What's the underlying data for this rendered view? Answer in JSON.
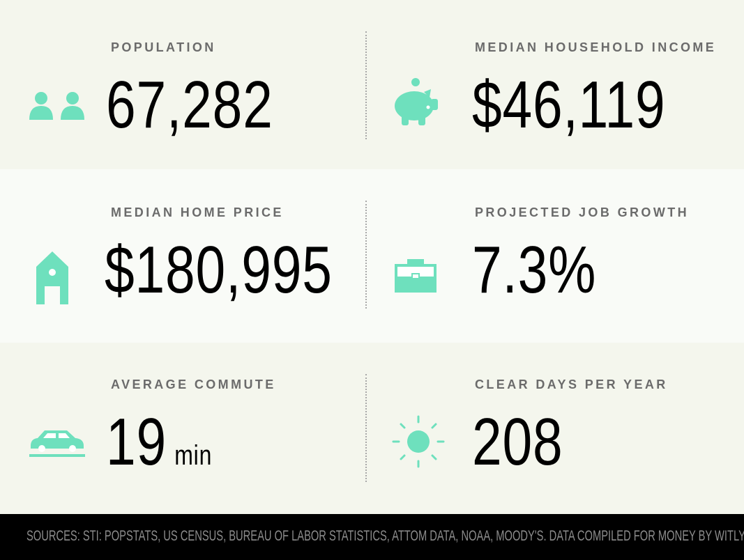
{
  "accent": "#6ee0bd",
  "stats": [
    {
      "label": "POPULATION",
      "value": "67,282",
      "icon": "people-icon"
    },
    {
      "label": "MEDIAN HOUSEHOLD INCOME",
      "value": "$46,119",
      "icon": "piggy-bank-icon"
    },
    {
      "label": "MEDIAN HOME PRICE",
      "value": "$180,995",
      "icon": "house-icon"
    },
    {
      "label": "PROJECTED JOB GROWTH",
      "value": "7.3%",
      "icon": "briefcase-icon"
    },
    {
      "label": "AVERAGE COMMUTE",
      "value": "19",
      "unit": "min",
      "icon": "car-icon"
    },
    {
      "label": "CLEAR DAYS PER YEAR",
      "value": "208",
      "icon": "sun-icon"
    }
  ],
  "footer": "SOURCES: STI: POPSTATS, US CENSUS, BUREAU OF LABOR STATISTICS, ATTOM DATA, NOAA, MOODY'S. DATA COMPILED FOR MONEY BY WITLYTIC."
}
